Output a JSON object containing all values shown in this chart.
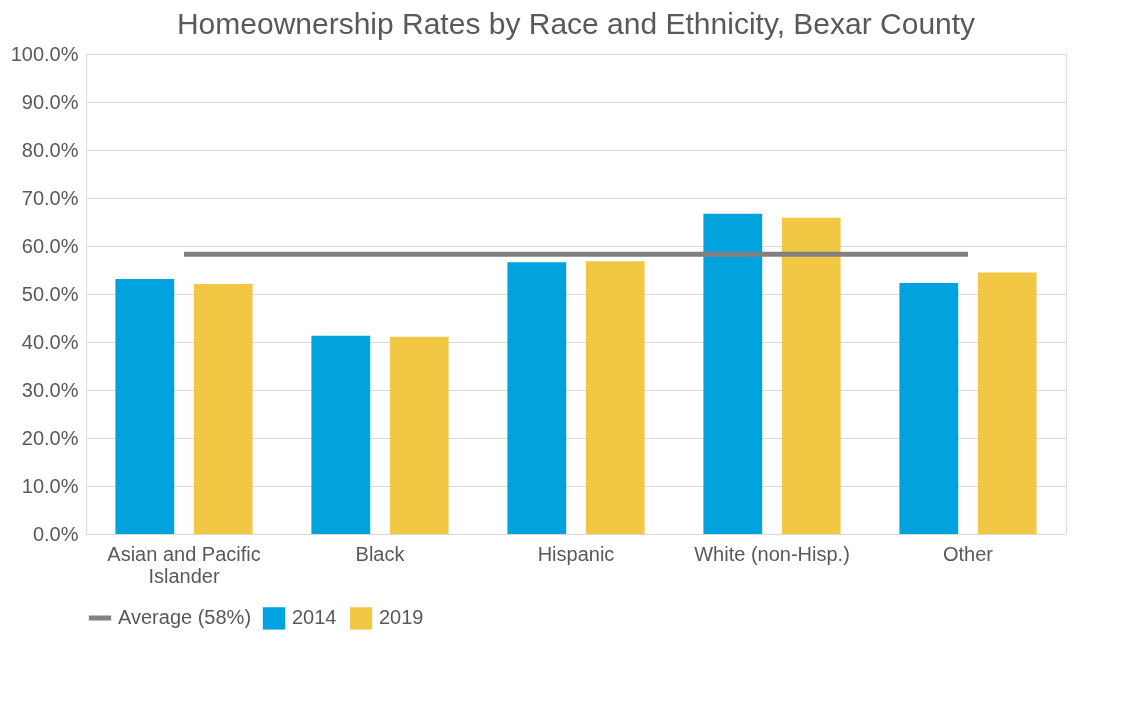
{
  "chart_data": {
    "type": "bar",
    "title": "Homeownership Rates by Race and Ethnicity, Bexar County",
    "categories": [
      "Asian and Pacific Islander",
      "Black",
      "Hispanic",
      "White (non-Hisp.)",
      "Other"
    ],
    "series": [
      {
        "name": "2014",
        "color": "#00a3dd",
        "values": [
          53.1,
          41.3,
          56.6,
          66.7,
          52.3
        ]
      },
      {
        "name": "2019",
        "color": "#f2c744",
        "values": [
          52.1,
          41.1,
          56.8,
          65.9,
          54.5
        ]
      },
      {
        "name": "Average (58%)",
        "type": "line",
        "color": "#808080",
        "values": [
          58.3,
          58.3,
          58.3,
          58.3,
          58.3
        ]
      }
    ],
    "ylim": [
      0,
      100
    ],
    "yticks": [
      {
        "value": 0,
        "label": "0.0%"
      },
      {
        "value": 10,
        "label": "10.0%"
      },
      {
        "value": 20,
        "label": "20.0%"
      },
      {
        "value": 30,
        "label": "30.0%"
      },
      {
        "value": 40,
        "label": "40.0%"
      },
      {
        "value": 50,
        "label": "50.0%"
      },
      {
        "value": 60,
        "label": "60.0%"
      },
      {
        "value": 70,
        "label": "70.0%"
      },
      {
        "value": 80,
        "label": "80.0%"
      },
      {
        "value": 90,
        "label": "90.0%"
      },
      {
        "value": 100,
        "label": "100.0%"
      }
    ],
    "grid": "y",
    "legend": "bottom"
  }
}
